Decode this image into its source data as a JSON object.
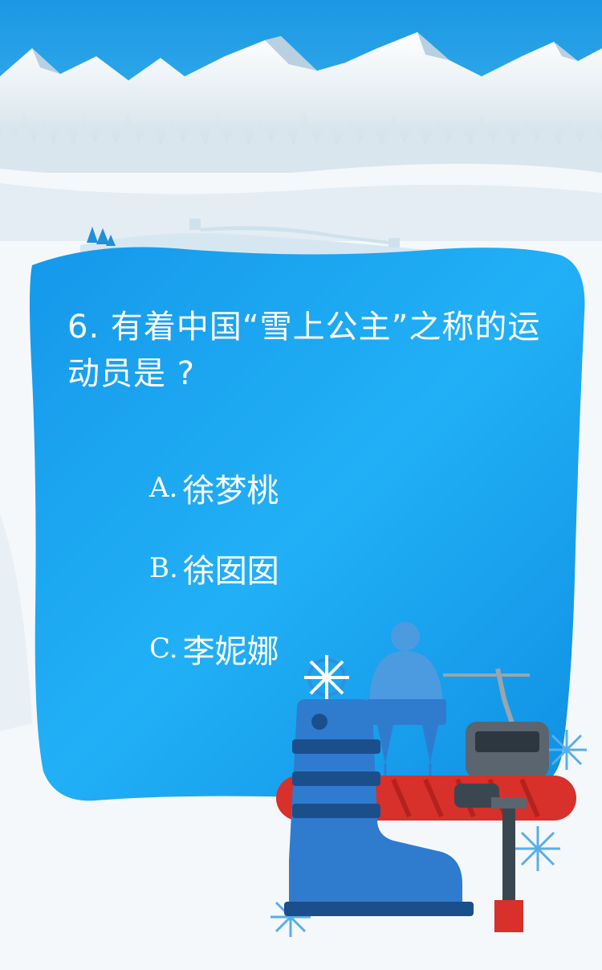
{
  "quiz": {
    "question": "6. 有着中国“雪上公主”之称的运动员是 ?",
    "options": [
      {
        "letter": "A.",
        "text": "徐梦桃"
      },
      {
        "letter": "B.",
        "text": "徐囡囡"
      },
      {
        "letter": "C.",
        "text": "李妮娜"
      }
    ]
  },
  "colors": {
    "sky": "#21a0e6",
    "card": "#1aa6ef",
    "snow": "#eef4f8",
    "boot": "#2f7ccf",
    "board": "#d8302a"
  },
  "icons": [
    "mountain-range-icon",
    "pine-trees-icon",
    "great-wall-icon",
    "snowflake-icon",
    "ski-boot-icon",
    "beanie-hat-icon",
    "snowboard-icon",
    "cable-car-icon",
    "ski-lift-pole-icon"
  ]
}
